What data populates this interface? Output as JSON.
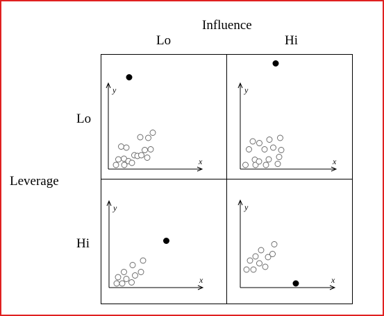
{
  "title": "Influence",
  "column_labels": [
    "Lo",
    "Hi"
  ],
  "row_title": "Leverage",
  "row_labels": [
    "Lo",
    "Hi"
  ],
  "axis": {
    "x": "x",
    "y": "y"
  },
  "panels": [
    {
      "id": "lo-lo",
      "regular_points": [
        [
          0.22,
          0.12
        ],
        [
          0.29,
          0.28
        ],
        [
          0.37,
          0.65
        ],
        [
          0.45,
          0.3
        ],
        [
          0.46,
          0.12
        ],
        [
          0.52,
          0.62
        ],
        [
          0.58,
          0.23
        ],
        [
          0.68,
          0.18
        ],
        [
          0.75,
          0.4
        ],
        [
          0.84,
          0.38
        ],
        [
          0.92,
          0.92
        ],
        [
          0.95,
          0.4
        ],
        [
          1.05,
          0.55
        ],
        [
          1.12,
          0.33
        ],
        [
          1.15,
          0.9
        ],
        [
          1.22,
          0.57
        ],
        [
          1.28,
          1.05
        ]
      ],
      "outlier": [
        0.6,
        2.65
      ]
    },
    {
      "id": "lo-hi",
      "regular_points": [
        [
          0.15,
          0.12
        ],
        [
          0.25,
          0.57
        ],
        [
          0.36,
          0.8
        ],
        [
          0.42,
          0.27
        ],
        [
          0.44,
          0.12
        ],
        [
          0.54,
          0.22
        ],
        [
          0.55,
          0.75
        ],
        [
          0.7,
          0.57
        ],
        [
          0.74,
          0.12
        ],
        [
          0.82,
          0.28
        ],
        [
          0.84,
          0.85
        ],
        [
          0.95,
          0.62
        ],
        [
          1.08,
          0.15
        ],
        [
          1.12,
          0.35
        ],
        [
          1.15,
          0.9
        ],
        [
          1.18,
          0.55
        ]
      ],
      "outlier": [
        1.02,
        3.05
      ]
    },
    {
      "id": "hi-lo",
      "regular_points": [
        [
          0.22,
          0.12
        ],
        [
          0.26,
          0.3
        ],
        [
          0.38,
          0.12
        ],
        [
          0.43,
          0.45
        ],
        [
          0.5,
          0.25
        ],
        [
          0.65,
          0.15
        ],
        [
          0.68,
          0.65
        ],
        [
          0.75,
          0.35
        ],
        [
          0.92,
          0.45
        ],
        [
          0.98,
          0.78
        ]
      ],
      "outlier": [
        1.65,
        1.35
      ]
    },
    {
      "id": "hi-hi",
      "regular_points": [
        [
          0.18,
          0.52
        ],
        [
          0.28,
          0.78
        ],
        [
          0.38,
          0.52
        ],
        [
          0.44,
          0.9
        ],
        [
          0.55,
          0.7
        ],
        [
          0.6,
          1.08
        ],
        [
          0.72,
          0.6
        ],
        [
          0.8,
          0.88
        ],
        [
          0.93,
          0.97
        ],
        [
          0.98,
          1.25
        ]
      ],
      "outlier": [
        1.6,
        0.12
      ]
    }
  ]
}
